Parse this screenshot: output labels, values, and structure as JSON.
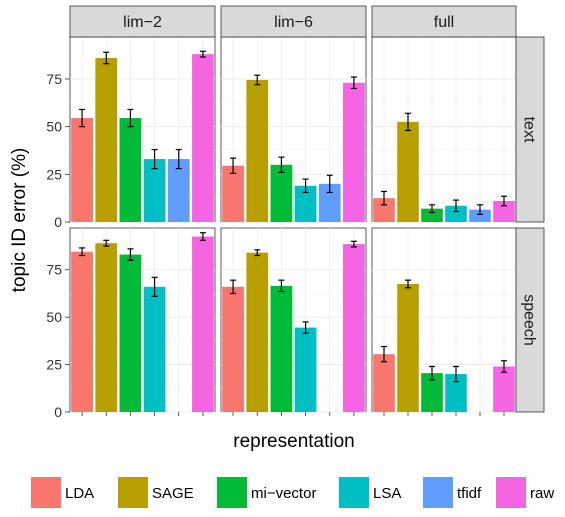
{
  "chart_data": {
    "type": "bar",
    "xlabel": "representation",
    "ylabel": "topic ID error (%)",
    "ylim": [
      0,
      97
    ],
    "yticks": [
      0,
      25,
      50,
      75
    ],
    "facet_columns": [
      "lim−2",
      "lim−6",
      "full"
    ],
    "facet_rows": [
      "text",
      "speech"
    ],
    "categories": [
      "LDA",
      "SAGE",
      "mi−vector",
      "LSA",
      "tfidf",
      "raw"
    ],
    "legend": {
      "position": "bottom",
      "entries": [
        {
          "label": "LDA",
          "color": "#F8766D"
        },
        {
          "label": "SAGE",
          "color": "#B79F00"
        },
        {
          "label": "mi−vector",
          "color": "#00BA38"
        },
        {
          "label": "LSA",
          "color": "#00BFC4"
        },
        {
          "label": "tfidf",
          "color": "#619CFF"
        },
        {
          "label": "raw",
          "color": "#F564E3"
        }
      ]
    },
    "panels": [
      {
        "col": "lim−2",
        "row": "text",
        "values": [
          54.5,
          86,
          54.5,
          33,
          33,
          88
        ],
        "errors": [
          4.5,
          3,
          4.5,
          5,
          5,
          1.5
        ]
      },
      {
        "col": "lim−6",
        "row": "text",
        "values": [
          29.5,
          74.5,
          30,
          19,
          20,
          73
        ],
        "errors": [
          4,
          2.5,
          4,
          3.5,
          4.5,
          3
        ]
      },
      {
        "col": "full",
        "row": "text",
        "values": [
          12.5,
          52.5,
          7,
          8.5,
          6.5,
          11
        ],
        "errors": [
          3.5,
          4.5,
          2,
          3,
          2.5,
          2.5
        ]
      },
      {
        "col": "lim−2",
        "row": "speech",
        "values": [
          84.5,
          89,
          83,
          66,
          null,
          92.5
        ],
        "errors": [
          2,
          1.5,
          3,
          5,
          null,
          2
        ]
      },
      {
        "col": "lim−6",
        "row": "speech",
        "values": [
          66,
          84,
          66.5,
          44.5,
          null,
          88.5
        ],
        "errors": [
          3.5,
          1.5,
          3,
          3,
          null,
          1.5
        ]
      },
      {
        "col": "full",
        "row": "speech",
        "values": [
          30.5,
          67.5,
          20.5,
          20,
          null,
          24
        ],
        "errors": [
          4,
          2,
          3.5,
          4,
          null,
          3
        ]
      }
    ],
    "grid": true,
    "background": "#ffffff",
    "strip_fill": "#d9d9d9",
    "gridline_color": "#ebebeb"
  }
}
